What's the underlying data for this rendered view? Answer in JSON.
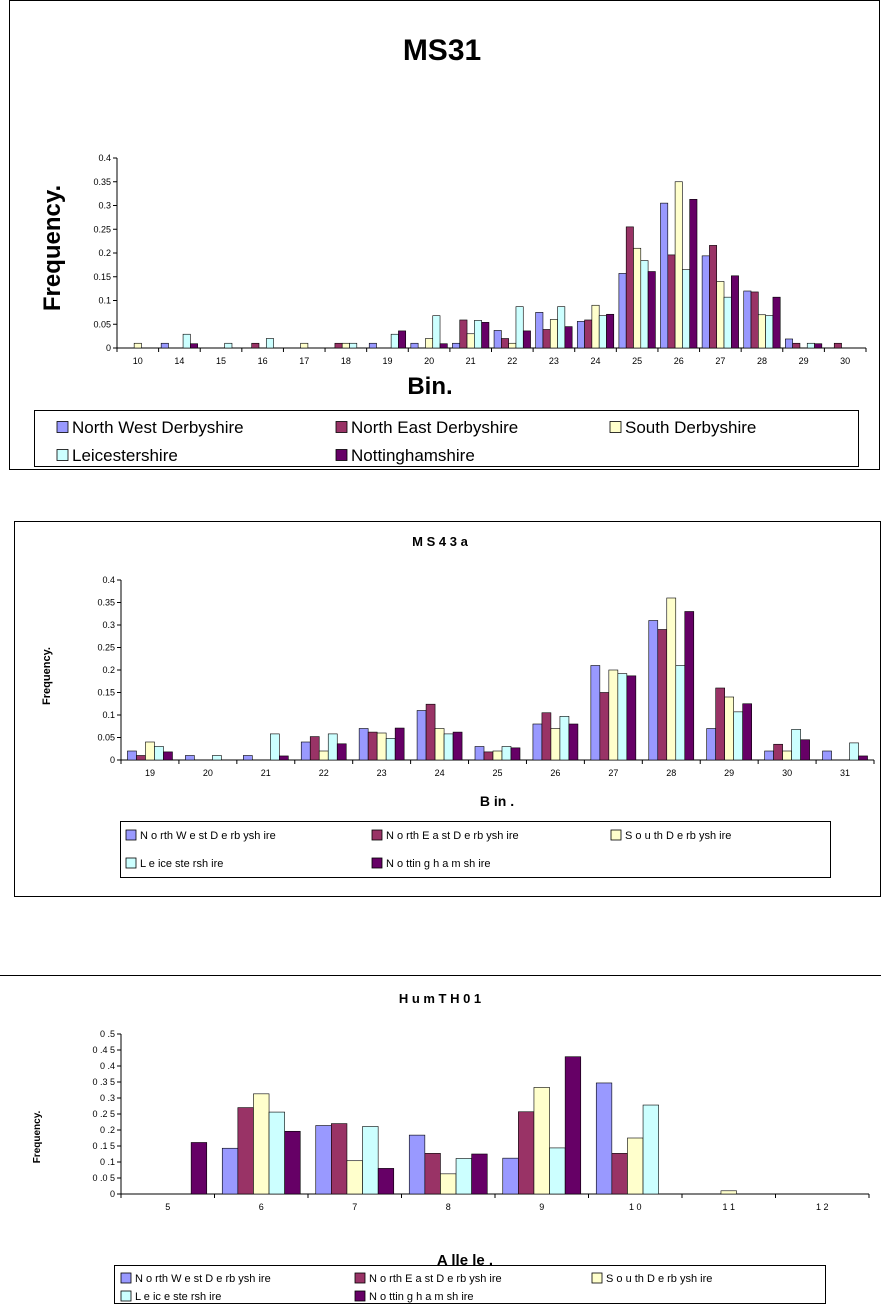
{
  "colors": {
    "North West Derbyshire": "#9999ff",
    "North East Derbyshire": "#993366",
    "South Derbyshire": "#ffffcc",
    "Leicestershire": "#ccffff",
    "Nottinghamshire": "#660066"
  },
  "chart_data": [
    {
      "type": "bar",
      "title": "MS31",
      "xlabel": "Bin.",
      "ylabel": "Frequency.",
      "ylim": [
        0,
        0.4
      ],
      "yticks": [
        "0",
        "0.05",
        "0.1",
        "0.15",
        "0.2",
        "0.25",
        "0.3",
        "0.35",
        "0.4"
      ],
      "grid": false,
      "legend_position": "bottom",
      "categories": [
        "10",
        "14",
        "15",
        "16",
        "17",
        "18",
        "19",
        "20",
        "21",
        "22",
        "23",
        "24",
        "25",
        "26",
        "27",
        "28",
        "29",
        "30"
      ],
      "series": [
        {
          "name": "North West Derbyshire",
          "values": [
            0,
            0.01,
            0,
            0,
            0,
            0,
            0.01,
            0.01,
            0.01,
            0.037,
            0.075,
            0.056,
            0.157,
            0.305,
            0.194,
            0.12,
            0.019,
            0
          ]
        },
        {
          "name": "North East Derbyshire",
          "values": [
            0,
            0,
            0,
            0.01,
            0,
            0.01,
            0,
            0,
            0.059,
            0.02,
            0.039,
            0.059,
            0.255,
            0.196,
            0.216,
            0.118,
            0.01,
            0.01
          ]
        },
        {
          "name": "South Derbyshire",
          "values": [
            0.01,
            0,
            0,
            0,
            0.01,
            0.01,
            0,
            0.02,
            0.03,
            0.01,
            0.06,
            0.09,
            0.21,
            0.35,
            0.14,
            0.07,
            0,
            0
          ]
        },
        {
          "name": "Leicestershire",
          "values": [
            0,
            0.029,
            0.01,
            0.02,
            0,
            0.01,
            0.029,
            0.068,
            0.058,
            0.087,
            0.087,
            0.068,
            0.184,
            0.165,
            0.107,
            0.068,
            0.01,
            0
          ]
        },
        {
          "name": "Nottinghamshire",
          "values": [
            0,
            0.009,
            0,
            0,
            0,
            0,
            0.036,
            0.009,
            0.054,
            0.036,
            0.045,
            0.071,
            0.161,
            0.313,
            0.152,
            0.107,
            0.009,
            0
          ]
        }
      ]
    },
    {
      "type": "bar",
      "title": "M S 4 3 a",
      "xlabel": "B in .",
      "ylabel": "Frequency.",
      "ylim": [
        0,
        0.4
      ],
      "yticks": [
        "0",
        "0.05",
        "0.1",
        "0.15",
        "0.2",
        "0.25",
        "0.3",
        "0.35",
        "0.4"
      ],
      "grid": false,
      "legend_position": "bottom",
      "categories": [
        "19",
        "20",
        "21",
        "22",
        "23",
        "24",
        "25",
        "26",
        "27",
        "28",
        "29",
        "30",
        "31"
      ],
      "series": [
        {
          "name": "N o rth  W e st D e rb ysh ire",
          "values": [
            0.02,
            0.01,
            0.01,
            0.04,
            0.07,
            0.11,
            0.03,
            0.08,
            0.21,
            0.31,
            0.07,
            0.02,
            0.02
          ]
        },
        {
          "name": "N o rth  E a st D e rb ysh ire",
          "values": [
            0.01,
            0,
            0,
            0.052,
            0.062,
            0.124,
            0.018,
            0.105,
            0.15,
            0.29,
            0.16,
            0.035,
            0
          ]
        },
        {
          "name": "S o u th  D e rb ysh ire",
          "values": [
            0.04,
            0,
            0,
            0.02,
            0.06,
            0.07,
            0.02,
            0.07,
            0.2,
            0.36,
            0.14,
            0.02,
            0
          ]
        },
        {
          "name": "L e ice ste rsh ire",
          "values": [
            0.03,
            0.01,
            0.058,
            0.058,
            0.048,
            0.058,
            0.03,
            0.097,
            0.192,
            0.21,
            0.107,
            0.068,
            0.038
          ]
        },
        {
          "name": "N o ttin g h a m sh ire",
          "values": [
            0.018,
            0,
            0.009,
            0.036,
            0.071,
            0.062,
            0.027,
            0.08,
            0.187,
            0.33,
            0.125,
            0.045,
            0.009
          ]
        }
      ]
    },
    {
      "type": "bar",
      "title": "H u m  T H 0 1",
      "xlabel": "A lle le .",
      "ylabel": "Frequency.",
      "ylim": [
        0,
        0.5
      ],
      "yticks": [
        "0",
        "0 .0 5",
        "0 .1",
        "0 .1 5",
        "0 .2",
        "0 .2 5",
        "0 .3",
        "0 .3 5",
        "0 .4",
        "0 .4 5",
        "0 .5"
      ],
      "grid": false,
      "legend_position": "bottom",
      "categories": [
        "5",
        "6",
        "7",
        "8",
        "9",
        "1 0",
        "1 1",
        "1 2"
      ],
      "series": [
        {
          "name": "N o rth  W e st D e rb ysh ire",
          "values": [
            0,
            0.143,
            0.214,
            0.184,
            0.112,
            0.347,
            0,
            0
          ]
        },
        {
          "name": "N o rth  E a st D e rb ysh ire",
          "values": [
            0,
            0.27,
            0.22,
            0.127,
            0.257,
            0.127,
            0,
            0
          ]
        },
        {
          "name": "S o u th  D e rb ysh ire",
          "values": [
            0,
            0.313,
            0.104,
            0.063,
            0.333,
            0.175,
            0.01,
            0
          ]
        },
        {
          "name": "L e ic e ste rsh ire",
          "values": [
            0,
            0.256,
            0.211,
            0.111,
            0.144,
            0.278,
            0,
            0
          ]
        },
        {
          "name": "N o ttin g h a m sh ire",
          "values": [
            0.161,
            0.196,
            0.08,
            0.125,
            0.429,
            0,
            0,
            0
          ]
        }
      ]
    }
  ]
}
